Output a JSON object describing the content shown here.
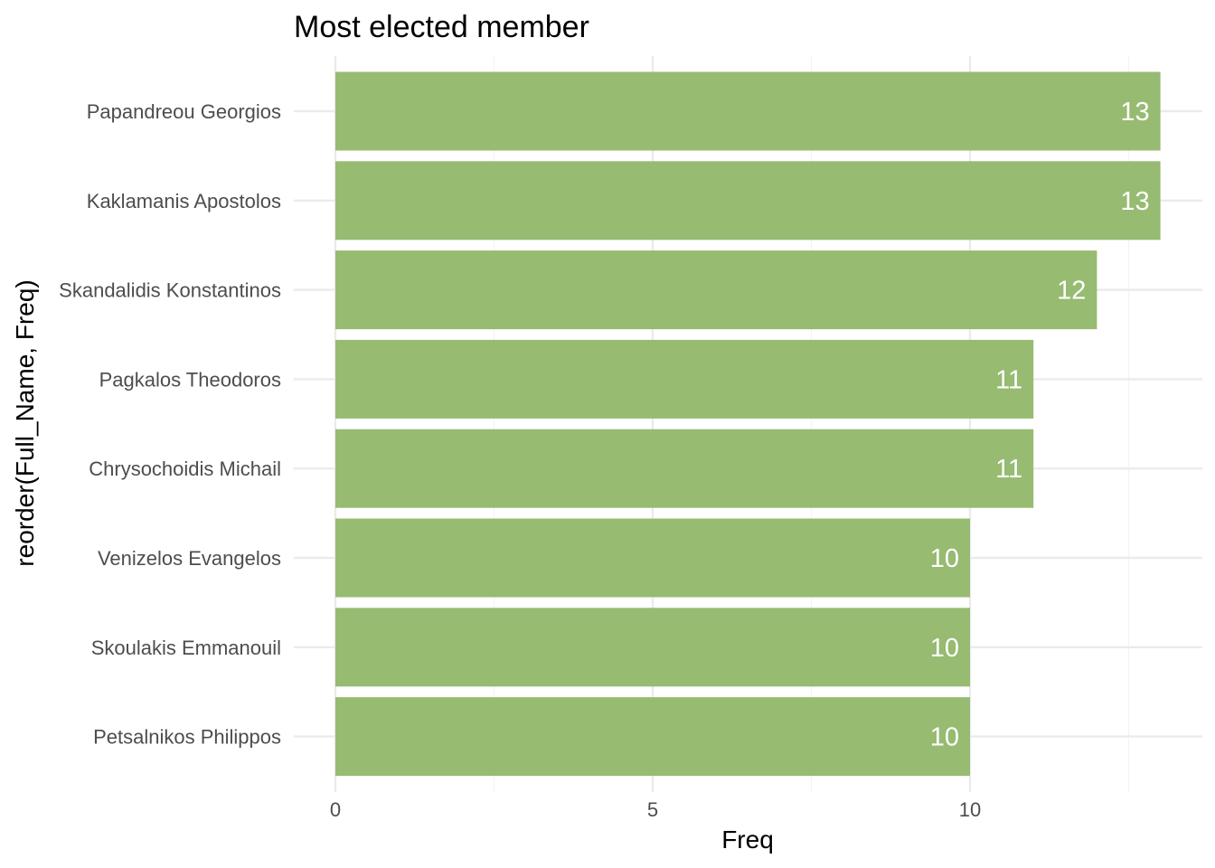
{
  "chart_data": {
    "type": "bar",
    "orientation": "horizontal",
    "title": "Most elected member",
    "xlabel": "Freq",
    "ylabel": "reorder(Full_Name, Freq)",
    "categories": [
      "Papandreou Georgios",
      "Kaklamanis Apostolos",
      "Skandalidis Konstantinos",
      "Pagkalos Theodoros",
      "Chrysochoidis Michail",
      "Venizelos Evangelos",
      "Skoulakis Emmanouil",
      "Petsalnikos Philippos"
    ],
    "values": [
      13,
      13,
      12,
      11,
      11,
      10,
      10,
      10
    ],
    "data_labels": [
      "13",
      "13",
      "12",
      "11",
      "11",
      "10",
      "10",
      "10"
    ],
    "x_ticks": [
      0,
      5,
      10
    ],
    "x_tick_labels": [
      "0",
      "5",
      "10"
    ],
    "xlim": [
      0,
      13
    ],
    "grid": true,
    "bar_color": "#97bb71",
    "grid_major_color": "#ebebeb",
    "grid_minor_color": "#f3f3f3",
    "data_label_color": "#ffffff",
    "legend": "none"
  }
}
